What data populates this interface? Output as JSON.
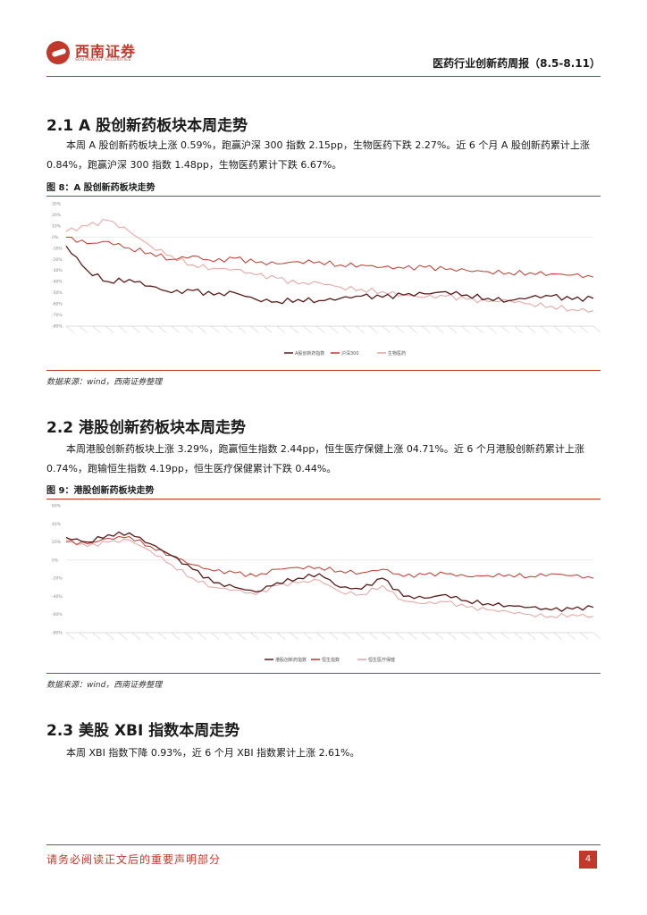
{
  "header": {
    "logo_cn": "西南证券",
    "logo_en": "SOUTHWEST SECURITIES",
    "report_title": "医药行业创新药周报（8.5-8.11）"
  },
  "sections": [
    {
      "title": "2.1 A 股创新药板块本周走势",
      "paragraph": "本周 A 股创新药板块上涨 0.59%，跑赢沪深 300 指数 2.15pp，生物医药下跌 2.27%。近 6 个月 A 股创新药累计上涨 0.84%，跑赢沪深 300 指数 1.48pp，生物医药累计下跌 6.67%。",
      "figure_title": "图 8：A 股创新药板块走势",
      "source": "数据来源：wind，西南证券整理"
    },
    {
      "title": "2.2 港股创新药板块本周走势",
      "paragraph": "本周港股创新药板块上涨 3.29%，跑赢恒生指数 2.44pp，恒生医疗保健上涨 04.71%。近 6 个月港股创新药累计上涨 0.74%，跑输恒生指数 4.19pp，恒生医疗保健累计下跌 0.44%。",
      "figure_title": "图 9：港股创新药板块走势",
      "source": "数据来源：wind，西南证券整理"
    },
    {
      "title": "2.3 美股 XBI 指数本周走势",
      "paragraph": "本周 XBI 指数下降 0.93%，近 6 个月 XBI 指数累计上涨 2.61%。"
    }
  ],
  "chart_data": [
    {
      "type": "line",
      "yticks": [
        "30%",
        "20%",
        "10%",
        "0%",
        "-10%",
        "-20%",
        "-30%",
        "-40%",
        "-50%",
        "-60%",
        "-70%",
        "-80%"
      ],
      "ylim": [
        -80,
        30
      ],
      "grid": false,
      "legend_position": "bottom-right",
      "colors": [
        "#5b1a1a",
        "#c0392b",
        "#e8a0a0"
      ],
      "x": [
        0,
        8,
        16,
        24,
        32,
        40,
        48,
        56,
        64,
        72,
        80,
        88,
        96,
        104,
        112,
        120,
        128,
        136,
        144,
        152,
        160,
        168,
        176,
        184,
        192,
        200
      ],
      "series": [
        {
          "name": "A股创新药指数",
          "values": [
            -8,
            -30,
            -40,
            -38,
            -44,
            -50,
            -48,
            -52,
            -50,
            -56,
            -58,
            -56,
            -57,
            -55,
            -53,
            -54,
            -52,
            -51,
            -49,
            -52,
            -55,
            -57,
            -54,
            -53,
            -56,
            -55
          ]
        },
        {
          "name": "沪深300",
          "values": [
            0,
            -6,
            -4,
            -10,
            -14,
            -20,
            -17,
            -22,
            -19,
            -23,
            -24,
            -22,
            -22,
            -25,
            -25,
            -27,
            -28,
            -27,
            -29,
            -30,
            -31,
            -32,
            -32,
            -33,
            -34,
            -36
          ]
        },
        {
          "name": "生物医药",
          "values": [
            5,
            10,
            15,
            5,
            -8,
            -17,
            -25,
            -28,
            -29,
            -34,
            -37,
            -42,
            -41,
            -45,
            -47,
            -49,
            -52,
            -54,
            -53,
            -56,
            -58,
            -57,
            -60,
            -62,
            -65,
            -66
          ]
        }
      ]
    },
    {
      "type": "line",
      "yticks": [
        "60%",
        "40%",
        "20%",
        "0%",
        "-20%",
        "-40%",
        "-60%",
        "-80%"
      ],
      "ylim": [
        -80,
        60
      ],
      "grid": false,
      "legend_position": "bottom",
      "colors": [
        "#5b1a1a",
        "#c0392b",
        "#e8a0a0"
      ],
      "x": [
        0,
        8,
        16,
        24,
        32,
        40,
        48,
        56,
        64,
        72,
        80,
        88,
        96,
        104,
        112,
        120,
        128,
        136,
        144,
        152,
        160,
        168,
        176,
        184,
        192,
        200
      ],
      "series": [
        {
          "name": "港股创新药指数",
          "values": [
            25,
            20,
            28,
            30,
            18,
            5,
            -10,
            -25,
            -30,
            -35,
            -25,
            -20,
            -15,
            -30,
            -32,
            -20,
            -40,
            -42,
            -38,
            -45,
            -48,
            -50,
            -52,
            -55,
            -54,
            -52
          ]
        },
        {
          "name": "恒生指数",
          "values": [
            20,
            18,
            24,
            26,
            15,
            5,
            -5,
            -12,
            -14,
            -18,
            -10,
            -8,
            -8,
            -12,
            -14,
            -10,
            -18,
            -16,
            -15,
            -18,
            -17,
            -16,
            -18,
            -15,
            -17,
            -20
          ]
        },
        {
          "name": "恒生医疗保健",
          "values": [
            22,
            15,
            20,
            22,
            10,
            -5,
            -20,
            -30,
            -33,
            -38,
            -28,
            -25,
            -22,
            -35,
            -38,
            -28,
            -45,
            -48,
            -46,
            -52,
            -55,
            -57,
            -60,
            -62,
            -60,
            -62
          ]
        }
      ]
    }
  ],
  "footer": {
    "disclaimer": "请务必阅读正文后的重要声明部分",
    "page": "4"
  }
}
